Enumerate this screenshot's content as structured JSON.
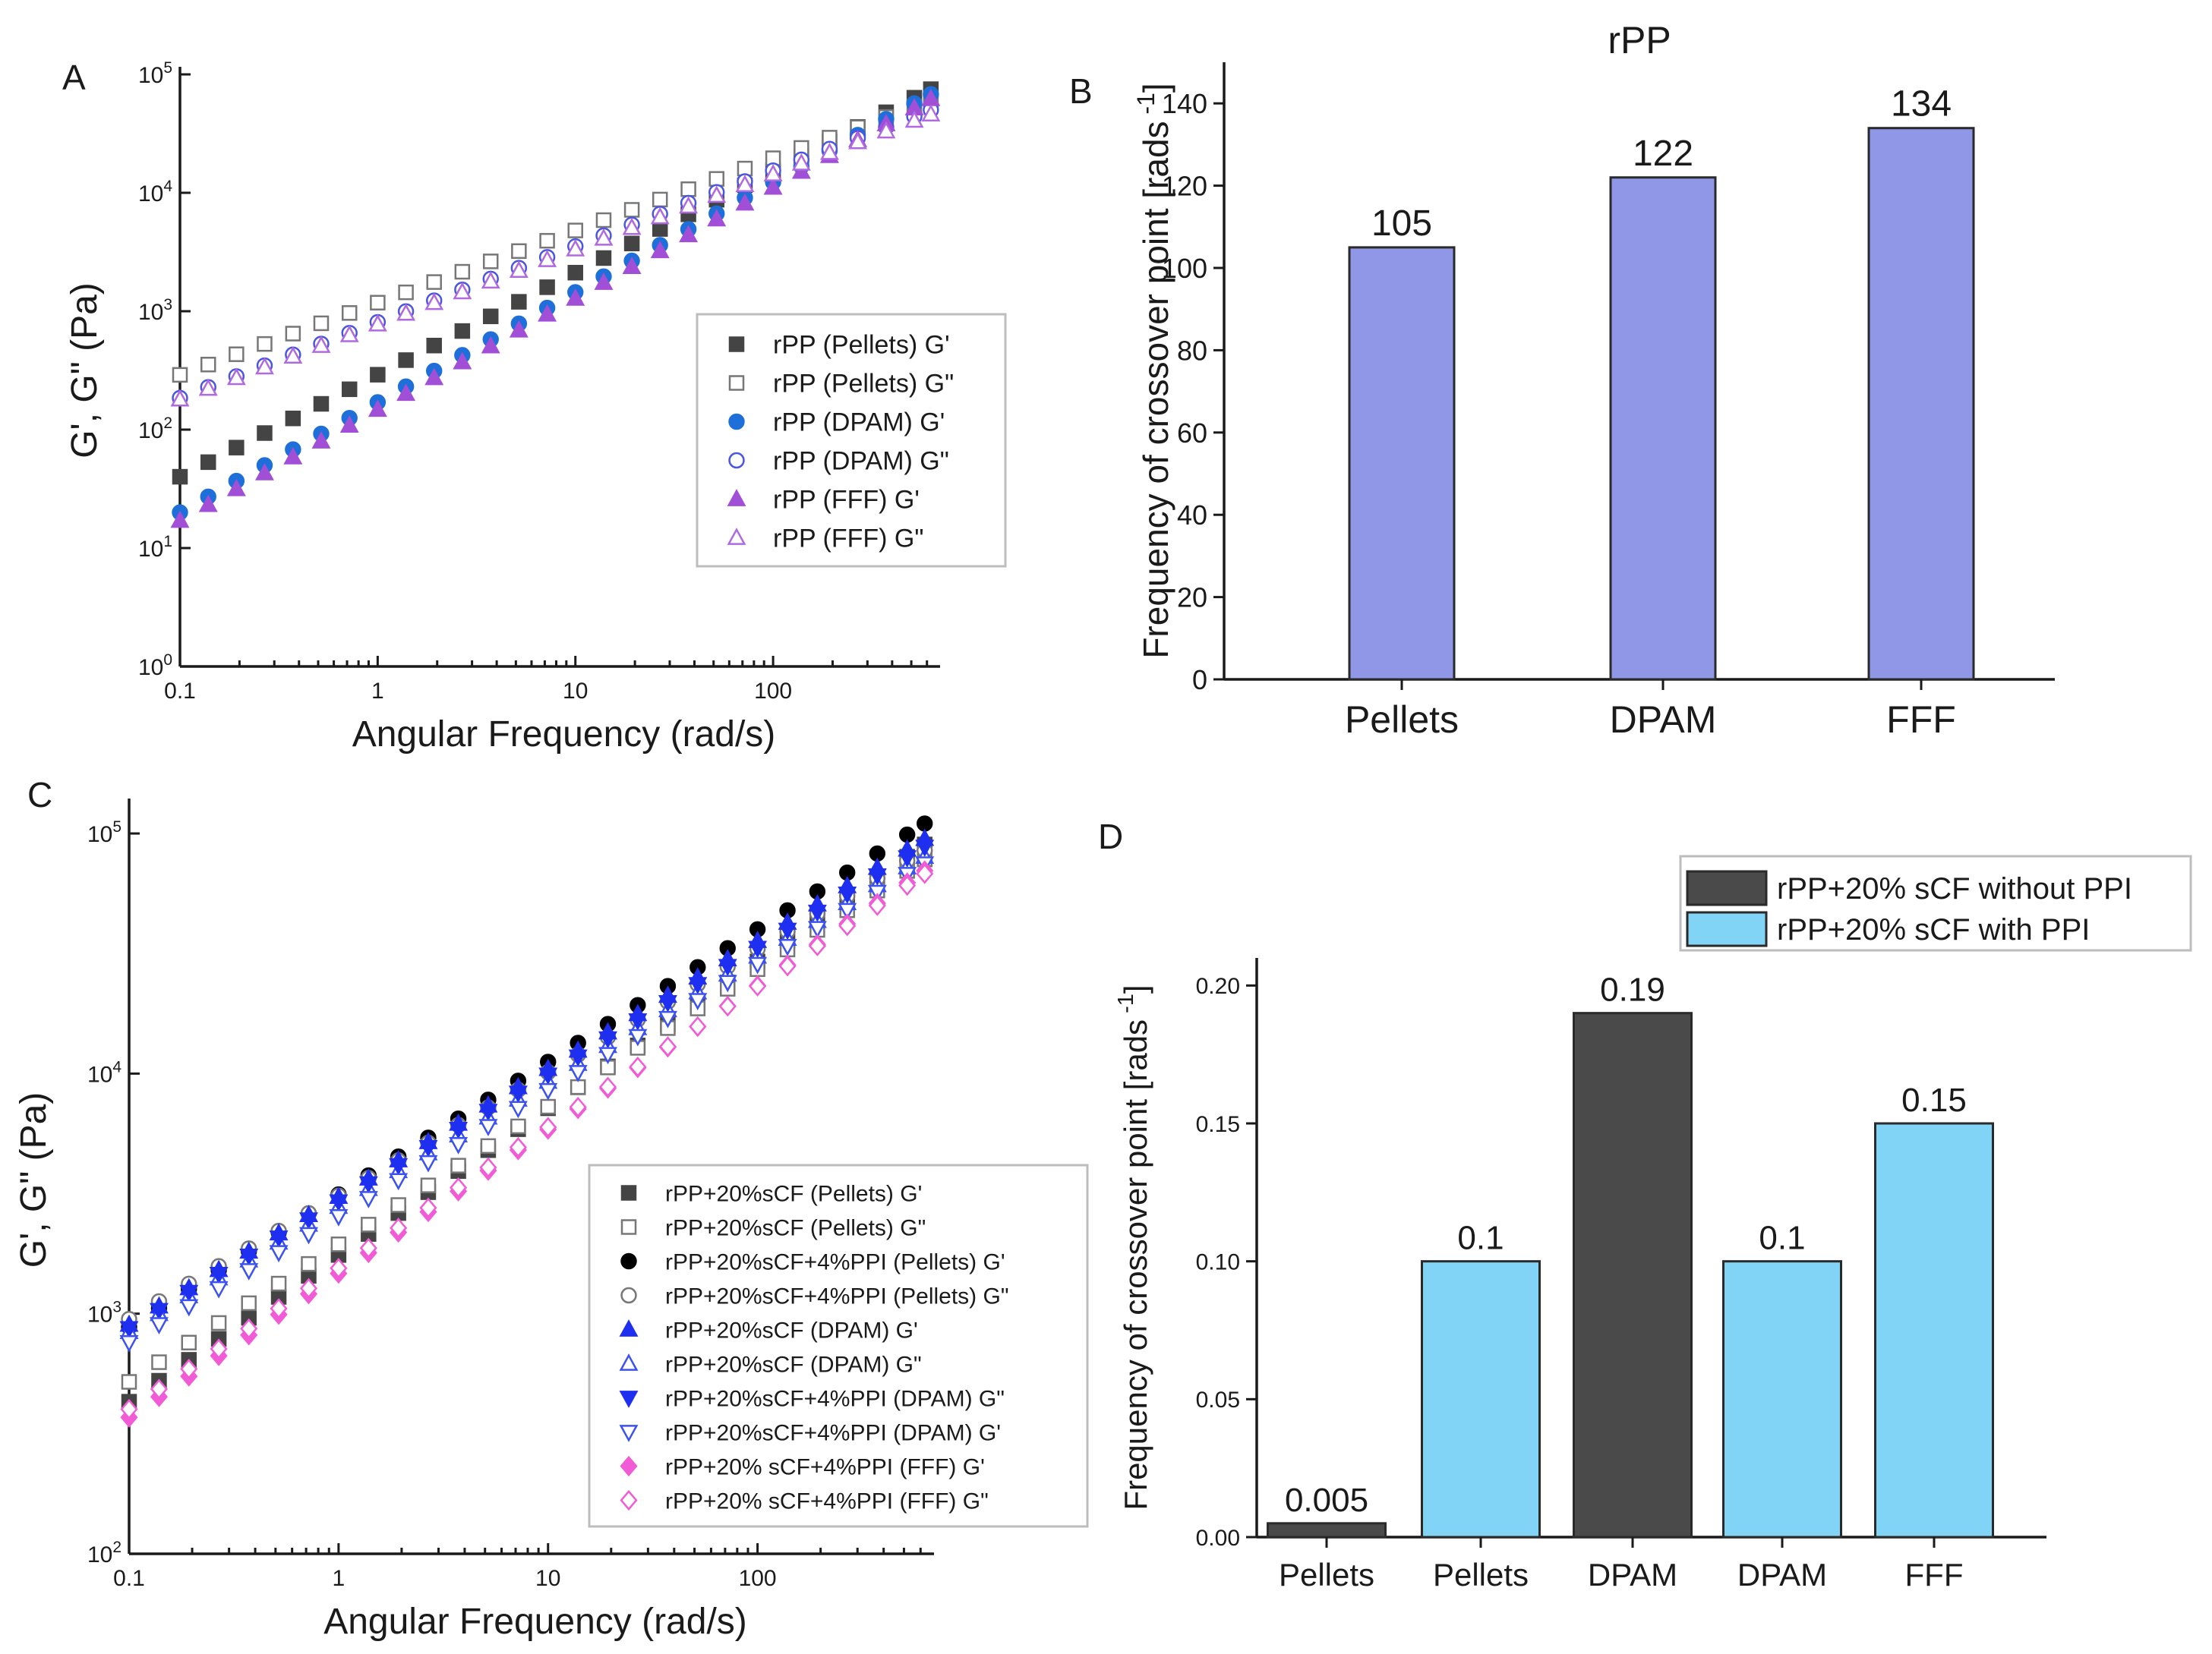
{
  "chart_data": [
    {
      "panel": "A",
      "type": "scatter",
      "scale": "log-log",
      "xlabel": "Angular Frequency (rad/s)",
      "ylabel": "G', G\" (Pa)",
      "xlim": [
        0.1,
        640
      ],
      "ylim": [
        1,
        100000
      ],
      "x_ticks": [
        {
          "v": 0.1,
          "label": "0.1"
        },
        {
          "v": 1,
          "label": "1"
        },
        {
          "v": 10,
          "label": "10"
        },
        {
          "v": 100,
          "label": "100"
        }
      ],
      "y_ticks": [
        {
          "v": 1,
          "base": "10",
          "exp": "0"
        },
        {
          "v": 10,
          "base": "10",
          "exp": "1"
        },
        {
          "v": 100,
          "base": "10",
          "exp": "2"
        },
        {
          "v": 1000,
          "base": "10",
          "exp": "3"
        },
        {
          "v": 10000,
          "base": "10",
          "exp": "4"
        },
        {
          "v": 100000,
          "base": "10",
          "exp": "5"
        }
      ],
      "legend_position": "center-right",
      "x": [
        0.1,
        0.139,
        0.193,
        0.268,
        0.373,
        0.518,
        0.72,
        1.0,
        1.39,
        1.93,
        2.68,
        3.73,
        5.18,
        7.2,
        10.0,
        13.9,
        19.3,
        26.8,
        37.3,
        51.8,
        72.0,
        100,
        139,
        193,
        268,
        373,
        518,
        628
      ],
      "series": [
        {
          "name": "rPP (Pellets) G'",
          "marker": "square",
          "filled": true,
          "color": "#444444",
          "y_start": 40,
          "y_end": 75000
        },
        {
          "name": "rPP (Pellets) G\"",
          "marker": "square",
          "filled": false,
          "color": "#777777",
          "y_start": 290,
          "y_end": 60000
        },
        {
          "name": "rPP (DPAM) G'",
          "marker": "circle",
          "filled": true,
          "color": "#1e6fd9",
          "y_start": 20,
          "y_end": 68000
        },
        {
          "name": "rPP (DPAM) G\"",
          "marker": "circle",
          "filled": false,
          "color": "#4a56e0",
          "y_start": 185,
          "y_end": 50000
        },
        {
          "name": "rPP (FFF) G'",
          "marker": "triangle-up",
          "filled": true,
          "color": "#a04fd6",
          "y_start": 17,
          "y_end": 62000
        },
        {
          "name": "rPP (FFF) G\"",
          "marker": "triangle-up",
          "filled": false,
          "color": "#b06ae0",
          "y_start": 180,
          "y_end": 46000
        }
      ]
    },
    {
      "panel": "B",
      "type": "bar",
      "title": "rPP",
      "xlabel": "",
      "ylabel": "Frequency of crossover point [rads",
      "ylabel_sup": "-1",
      "ylabel_end": "]",
      "ylim": [
        0,
        150
      ],
      "y_ticks": [
        "0",
        "20",
        "40",
        "60",
        "80",
        "100",
        "120",
        "140"
      ],
      "categories": [
        "Pellets",
        "DPAM",
        "FFF"
      ],
      "values": [
        105,
        122,
        134
      ],
      "value_labels": [
        "105",
        "122",
        "134"
      ],
      "bar_color": "#8f97e6"
    },
    {
      "panel": "C",
      "type": "scatter",
      "scale": "log-log",
      "xlabel": "Angular Frequency (rad/s)",
      "ylabel": "G', G\" (Pa)",
      "xlim": [
        0.1,
        640
      ],
      "ylim": [
        100,
        130000
      ],
      "x_ticks": [
        {
          "v": 0.1,
          "label": "0.1"
        },
        {
          "v": 1,
          "label": "1"
        },
        {
          "v": 10,
          "label": "10"
        },
        {
          "v": 100,
          "label": "100"
        }
      ],
      "y_ticks": [
        {
          "v": 100,
          "base": "10",
          "exp": "2"
        },
        {
          "v": 1000,
          "base": "10",
          "exp": "3"
        },
        {
          "v": 10000,
          "base": "10",
          "exp": "4"
        },
        {
          "v": 100000,
          "base": "10",
          "exp": "5"
        }
      ],
      "legend_position": "lower-right",
      "x": [
        0.1,
        0.139,
        0.193,
        0.268,
        0.373,
        0.518,
        0.72,
        1.0,
        1.39,
        1.93,
        2.68,
        3.73,
        5.18,
        7.2,
        10.0,
        13.9,
        19.3,
        26.8,
        37.3,
        51.8,
        72.0,
        100,
        139,
        193,
        268,
        373,
        518,
        628
      ],
      "series": [
        {
          "name": "rPP+20%sCF (Pellets) G'",
          "marker": "square",
          "filled": true,
          "color": "#444444",
          "y_start": 430,
          "y_end": 90000
        },
        {
          "name": "rPP+20%sCF (Pellets) G\"",
          "marker": "square",
          "filled": false,
          "color": "#777777",
          "y_start": 520,
          "y_end": 78000
        },
        {
          "name": "rPP+20%sCF+4%PPI (Pellets) G'",
          "marker": "circle",
          "filled": true,
          "color": "#000000",
          "y_start": 880,
          "y_end": 110000
        },
        {
          "name": "rPP+20%sCF+4%PPI (Pellets) G\"",
          "marker": "circle",
          "filled": false,
          "color": "#777777",
          "y_start": 950,
          "y_end": 85000
        },
        {
          "name": "rPP+20%sCF (DPAM) G'",
          "marker": "triangle-up",
          "filled": true,
          "color": "#1f2ff0",
          "y_start": 900,
          "y_end": 95000
        },
        {
          "name": "rPP+20%sCF (DPAM) G\"",
          "marker": "triangle-up",
          "filled": false,
          "color": "#3c52f0",
          "y_start": 840,
          "y_end": 80000
        },
        {
          "name": "rPP+20%sCF+4%PPI (DPAM) G\"",
          "marker": "triangle-down",
          "filled": true,
          "color": "#1f2ff0",
          "y_start": 870,
          "y_end": 88000
        },
        {
          "name": "rPP+20%sCF+4%PPI (DPAM) G'",
          "marker": "triangle-down",
          "filled": false,
          "color": "#3c52f0",
          "y_start": 760,
          "y_end": 75000
        },
        {
          "name": "rPP+20% sCF+4%PPI (FFF) G'",
          "marker": "diamond",
          "filled": true,
          "color": "#f25bd6",
          "y_start": 370,
          "y_end": 70000
        },
        {
          "name": "rPP+20% sCF+4%PPI (FFF) G\"",
          "marker": "diamond",
          "filled": false,
          "color": "#f25bd6",
          "y_start": 400,
          "y_end": 68000
        }
      ]
    },
    {
      "panel": "D",
      "type": "bar",
      "xlabel": "",
      "ylabel": "Frequency of crossover point [rads",
      "ylabel_sup": "-1",
      "ylabel_end": "]",
      "ylim": [
        0,
        0.21
      ],
      "y_ticks": [
        "0.00",
        "0.05",
        "0.10",
        "0.15",
        "0.20"
      ],
      "categories": [
        "Pellets",
        "Pellets",
        "DPAM",
        "DPAM",
        "FFF"
      ],
      "values": [
        0.005,
        0.1,
        0.19,
        0.1,
        0.15
      ],
      "value_labels": [
        "0.005",
        "0.1",
        "0.19",
        "0.1",
        "0.15"
      ],
      "groups": [
        0,
        1,
        0,
        1,
        1
      ],
      "legend": [
        {
          "name": "rPP+20% sCF without PPI",
          "color": "#4a4a4a"
        },
        {
          "name": "rPP+20% sCF with PPI",
          "color": "#82d4f7"
        }
      ],
      "legend_position": "top-right"
    }
  ],
  "panel_letters": {
    "a": "A",
    "b": "B",
    "c": "C",
    "d": "D"
  }
}
